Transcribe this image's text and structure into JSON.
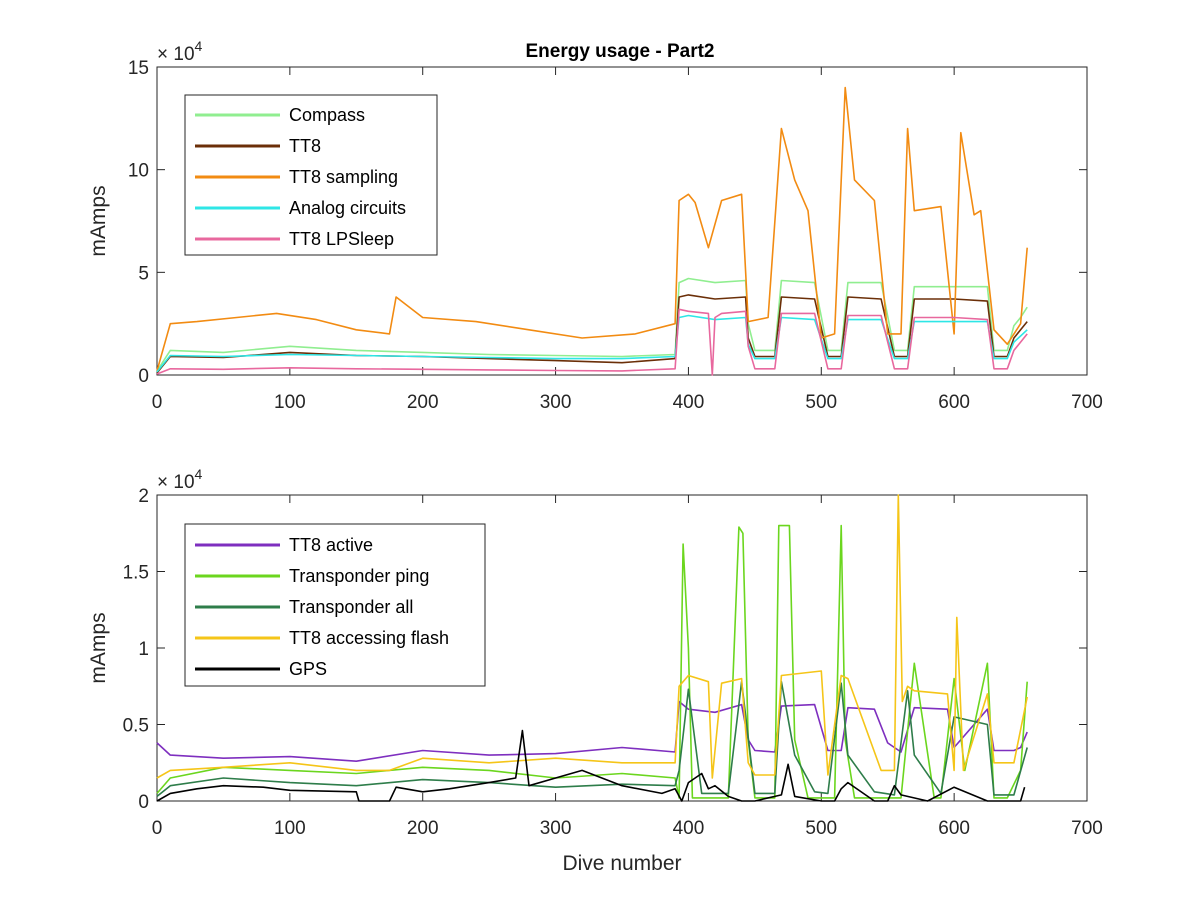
{
  "figure": {
    "title": "Energy usage - Part2"
  },
  "chart_data": [
    {
      "type": "line",
      "title": "Energy usage - Part2",
      "xlabel": "",
      "ylabel": "mAmps",
      "xlim": [
        0,
        700
      ],
      "ylim": [
        0,
        150000
      ],
      "x_ticks": [
        "0",
        "100",
        "200",
        "300",
        "400",
        "500",
        "600",
        "700"
      ],
      "y_ticks": [
        "0",
        "5",
        "10",
        "15"
      ],
      "y_exponent": "×10^4",
      "y_exponent_base": "× 10",
      "y_exponent_power": "4",
      "legend_position": "top-left",
      "series": [
        {
          "name": "Compass",
          "color": "#90ee90",
          "x": [
            0,
            10,
            50,
            100,
            150,
            200,
            250,
            300,
            350,
            390,
            393,
            400,
            420,
            443,
            445,
            450,
            465,
            470,
            495,
            505,
            515,
            520,
            545,
            555,
            565,
            570,
            595,
            600,
            625,
            630,
            640,
            645,
            650,
            655
          ],
          "y": [
            2000,
            12000,
            11000,
            14000,
            12000,
            11000,
            10000,
            9500,
            9000,
            10000,
            45000,
            47000,
            45000,
            46000,
            25000,
            12000,
            12000,
            46000,
            45000,
            12000,
            12000,
            45000,
            45000,
            12000,
            12000,
            43000,
            43000,
            43000,
            43000,
            12000,
            12000,
            24000,
            28000,
            33000
          ]
        },
        {
          "name": "TT8",
          "color": "#6b2f08",
          "x": [
            0,
            10,
            50,
            100,
            150,
            200,
            250,
            300,
            350,
            390,
            393,
            400,
            420,
            443,
            445,
            450,
            465,
            470,
            495,
            505,
            515,
            520,
            545,
            555,
            565,
            570,
            595,
            600,
            625,
            630,
            640,
            645,
            650,
            655
          ],
          "y": [
            1000,
            9000,
            8500,
            11000,
            9500,
            9000,
            8000,
            7000,
            6000,
            8000,
            38000,
            39000,
            37000,
            38000,
            18000,
            9000,
            9000,
            38000,
            37000,
            9000,
            9000,
            38000,
            37000,
            9000,
            9000,
            37000,
            37000,
            37000,
            36000,
            9000,
            9000,
            18000,
            22000,
            26000
          ]
        },
        {
          "name": "TT8 sampling",
          "color": "#f28b12",
          "x": [
            0,
            10,
            30,
            60,
            90,
            120,
            150,
            175,
            180,
            200,
            240,
            280,
            320,
            360,
            390,
            393,
            400,
            405,
            415,
            425,
            440,
            445,
            460,
            470,
            480,
            490,
            500,
            510,
            518,
            525,
            540,
            550,
            560,
            565,
            570,
            590,
            600,
            605,
            615,
            620,
            630,
            640,
            650,
            655
          ],
          "y": [
            2000,
            25000,
            26000,
            28000,
            30000,
            27000,
            22000,
            20000,
            38000,
            28000,
            26000,
            22000,
            18000,
            20000,
            25000,
            85000,
            88000,
            84000,
            62000,
            85000,
            88000,
            26000,
            28000,
            120000,
            95000,
            80000,
            18000,
            20000,
            140000,
            95000,
            85000,
            20000,
            20000,
            120000,
            80000,
            82000,
            20000,
            118000,
            78000,
            80000,
            22000,
            15000,
            25000,
            62000
          ]
        },
        {
          "name": "Analog circuits",
          "color": "#2ee6e6",
          "x": [
            0,
            10,
            50,
            100,
            150,
            200,
            250,
            300,
            350,
            390,
            393,
            400,
            420,
            443,
            445,
            450,
            465,
            470,
            495,
            505,
            515,
            520,
            545,
            555,
            565,
            570,
            595,
            600,
            625,
            630,
            640,
            645,
            650,
            655
          ],
          "y": [
            1500,
            9500,
            9000,
            10000,
            9500,
            9000,
            8500,
            8000,
            8000,
            9000,
            28000,
            29000,
            27000,
            28000,
            15000,
            8000,
            8000,
            28000,
            27000,
            8000,
            8000,
            27000,
            27000,
            8000,
            8000,
            26000,
            26000,
            26000,
            26000,
            8000,
            8000,
            16000,
            19000,
            22000
          ]
        },
        {
          "name": "TT8 LPSleep",
          "color": "#e8689e",
          "x": [
            0,
            10,
            50,
            100,
            150,
            200,
            250,
            300,
            350,
            390,
            393,
            400,
            415,
            418,
            420,
            425,
            443,
            445,
            450,
            465,
            470,
            495,
            505,
            515,
            520,
            545,
            555,
            565,
            570,
            595,
            600,
            625,
            630,
            640,
            645,
            650,
            655
          ],
          "y": [
            500,
            3000,
            2800,
            3500,
            3000,
            2800,
            2500,
            2200,
            2000,
            3000,
            32000,
            31000,
            30000,
            0,
            28000,
            30000,
            31000,
            14000,
            3000,
            3000,
            30000,
            30000,
            3000,
            3000,
            29000,
            29000,
            3000,
            3000,
            28000,
            28000,
            28000,
            27000,
            3000,
            3000,
            12000,
            16000,
            20000
          ]
        }
      ]
    },
    {
      "type": "line",
      "title": "",
      "xlabel": "Dive number",
      "ylabel": "mAmps",
      "xlim": [
        0,
        700
      ],
      "ylim": [
        0,
        20000
      ],
      "x_ticks": [
        "0",
        "100",
        "200",
        "300",
        "400",
        "500",
        "600",
        "700"
      ],
      "y_ticks": [
        "0",
        "0.5",
        "1",
        "1.5",
        "2"
      ],
      "y_exponent": "×10^4",
      "y_exponent_base": "× 10",
      "y_exponent_power": "4",
      "legend_position": "top-left",
      "series": [
        {
          "name": "TT8 active",
          "color": "#7e2fbf",
          "x": [
            0,
            10,
            50,
            100,
            150,
            200,
            250,
            300,
            350,
            390,
            393,
            400,
            420,
            440,
            445,
            450,
            465,
            470,
            495,
            505,
            515,
            520,
            540,
            550,
            560,
            570,
            595,
            600,
            625,
            630,
            645,
            650,
            655
          ],
          "y": [
            3800,
            3000,
            2800,
            2900,
            2600,
            3300,
            3000,
            3100,
            3500,
            3200,
            6500,
            6000,
            5800,
            6300,
            4000,
            3300,
            3200,
            6200,
            6300,
            3300,
            3300,
            6100,
            6000,
            3800,
            3200,
            6100,
            6000,
            3500,
            6000,
            3300,
            3300,
            3500,
            4500
          ]
        },
        {
          "name": "Transponder ping",
          "color": "#6bd61e",
          "x": [
            0,
            10,
            50,
            100,
            150,
            200,
            250,
            300,
            350,
            390,
            393,
            396,
            400,
            403,
            410,
            430,
            438,
            441,
            445,
            450,
            465,
            468,
            476,
            480,
            490,
            510,
            515,
            518,
            525,
            560,
            570,
            585,
            590,
            600,
            608,
            625,
            630,
            640,
            650,
            655
          ],
          "y": [
            500,
            1500,
            2200,
            2000,
            1800,
            2200,
            2000,
            1500,
            1800,
            1500,
            200,
            16800,
            10000,
            200,
            200,
            200,
            17900,
            17500,
            4000,
            200,
            200,
            18000,
            18000,
            4000,
            200,
            200,
            18000,
            4000,
            200,
            200,
            9000,
            200,
            200,
            8000,
            2000,
            9000,
            200,
            200,
            2000,
            7800
          ]
        },
        {
          "name": "Transponder all",
          "color": "#2e7d4a",
          "x": [
            0,
            10,
            50,
            100,
            150,
            200,
            250,
            300,
            350,
            390,
            393,
            400,
            410,
            430,
            440,
            450,
            465,
            470,
            480,
            495,
            505,
            515,
            520,
            540,
            555,
            565,
            570,
            590,
            600,
            625,
            630,
            645,
            655
          ],
          "y": [
            300,
            1000,
            1500,
            1200,
            1000,
            1400,
            1200,
            900,
            1100,
            1000,
            2000,
            7300,
            500,
            500,
            7800,
            500,
            500,
            7800,
            3000,
            600,
            500,
            7700,
            3000,
            600,
            400,
            7200,
            3000,
            500,
            5500,
            5000,
            400,
            400,
            3500
          ]
        },
        {
          "name": "TT8 accessing flash",
          "color": "#f5c518",
          "x": [
            0,
            10,
            50,
            100,
            150,
            175,
            200,
            250,
            300,
            350,
            390,
            393,
            400,
            415,
            418,
            425,
            440,
            445,
            450,
            465,
            470,
            500,
            505,
            515,
            520,
            545,
            555,
            558,
            561,
            565,
            570,
            595,
            600,
            602,
            607,
            625,
            630,
            645,
            655
          ],
          "y": [
            1500,
            2000,
            2200,
            2500,
            2000,
            2000,
            2800,
            2500,
            2800,
            2500,
            2500,
            7500,
            8200,
            7800,
            1500,
            7700,
            8000,
            2500,
            1700,
            1700,
            8200,
            8500,
            1700,
            8200,
            8000,
            2000,
            2000,
            20000,
            6500,
            7500,
            7200,
            7000,
            2000,
            12000,
            2000,
            7000,
            2500,
            2500,
            6800
          ]
        },
        {
          "name": "GPS",
          "color": "#000000",
          "x": [
            0,
            10,
            30,
            50,
            80,
            100,
            150,
            152,
            175,
            180,
            200,
            220,
            250,
            270,
            275,
            280,
            300,
            320,
            350,
            380,
            390,
            395,
            400,
            410,
            415,
            420,
            430,
            440,
            450,
            470,
            475,
            480,
            500,
            510,
            515,
            520,
            540,
            550,
            555,
            560,
            580,
            600,
            625,
            630,
            650,
            653
          ],
          "y": [
            0,
            500,
            800,
            1000,
            900,
            700,
            600,
            0,
            0,
            900,
            600,
            800,
            1200,
            1500,
            4600,
            1000,
            1500,
            2000,
            1000,
            500,
            800,
            0,
            1200,
            1800,
            800,
            1000,
            300,
            0,
            0,
            400,
            2400,
            300,
            0,
            0,
            800,
            1200,
            0,
            0,
            1000,
            400,
            0,
            900,
            0,
            0,
            0,
            900
          ]
        }
      ]
    }
  ]
}
